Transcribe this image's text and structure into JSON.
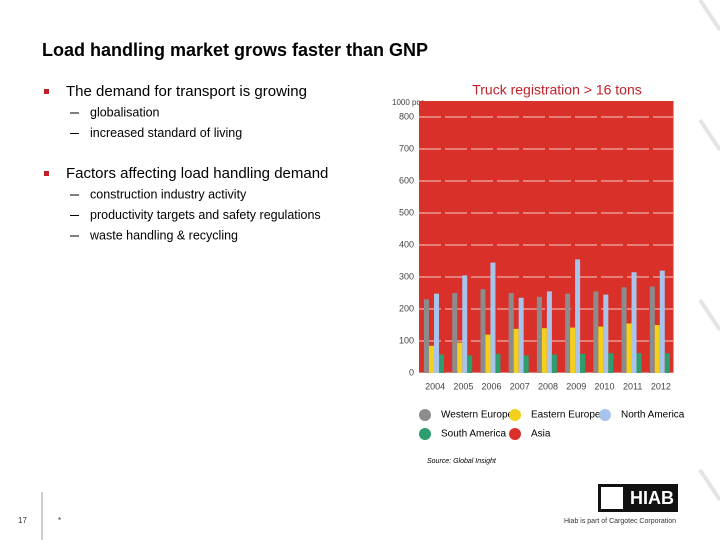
{
  "slide": {
    "title": "Load handling market grows faster than GNP",
    "bullets": [
      {
        "text": "The demand for transport is growing",
        "sub": [
          "globalisation",
          "increased standard of living"
        ]
      },
      {
        "text": "Factors affecting load handling demand",
        "sub": [
          "construction industry activity",
          "productivity targets and safety regulations",
          "waste handling & recycling"
        ]
      }
    ],
    "source": "Source: Global Insight",
    "page_number": "17",
    "footer_mark": "*",
    "logo": "HIAB",
    "logo_caption": "Hiab is part of Cargotec Corporation"
  },
  "chart_data": {
    "type": "bar",
    "title": "Truck registration > 16 tons",
    "y_label": "1000 pcs",
    "categories": [
      "2004",
      "2005",
      "2006",
      "2007",
      "2008",
      "2009",
      "2010",
      "2011",
      "2012"
    ],
    "series": [
      {
        "name": "Western Europe",
        "color": "#8c8c8c",
        "values": [
          230,
          250,
          262,
          250,
          238,
          248,
          255,
          268,
          270
        ]
      },
      {
        "name": "Eastern Europe",
        "color": "#f2d01c",
        "values": [
          85,
          95,
          120,
          138,
          140,
          142,
          145,
          155,
          150
        ]
      },
      {
        "name": "North America",
        "color": "#a9c4ea",
        "values": [
          248,
          305,
          345,
          235,
          255,
          355,
          245,
          315,
          320
        ]
      },
      {
        "name": "South America",
        "color": "#2e9e6e",
        "values": [
          58,
          55,
          60,
          55,
          58,
          60,
          62,
          62,
          62
        ]
      },
      {
        "name": "Asia",
        "color": "#d9302a",
        "values": [
          850,
          850,
          850,
          850,
          850,
          850,
          850,
          850,
          850
        ]
      }
    ],
    "ylim": [
      0,
      850
    ],
    "yticks": [
      0,
      100,
      200,
      300,
      400,
      500,
      600,
      700,
      800
    ],
    "grid": true
  }
}
